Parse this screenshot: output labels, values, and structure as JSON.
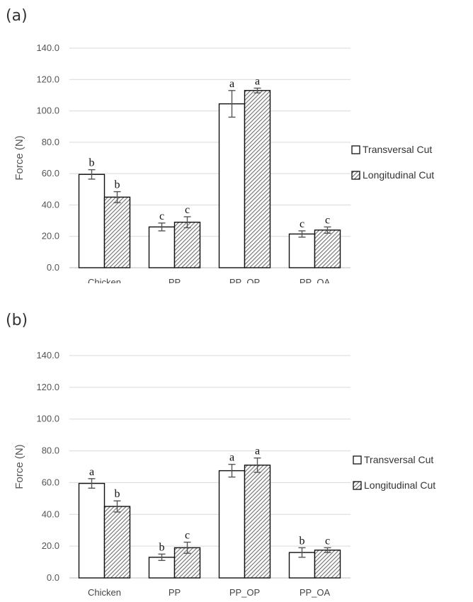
{
  "chart_data": [
    {
      "type": "bar",
      "panel_label": "(a)",
      "ylabel": "Force (N)",
      "ylim": [
        0,
        140
      ],
      "yticks": [
        "0.0",
        "20.0",
        "40.0",
        "60.0",
        "80.0",
        "100.0",
        "120.0",
        "140.0"
      ],
      "categories": [
        "Chicken",
        "PP",
        "PP_OP",
        "PP_OA"
      ],
      "legend_position": "right",
      "grid": true,
      "series": [
        {
          "name": "Transversal Cut",
          "pattern": "white",
          "values": [
            59.5,
            26.0,
            104.5,
            21.5
          ],
          "errors": [
            3.0,
            2.5,
            8.5,
            2.0
          ],
          "labels": [
            "b",
            "c",
            "a",
            "c"
          ]
        },
        {
          "name": "Longitudinal Cut",
          "pattern": "hatched",
          "values": [
            45.0,
            29.0,
            113.0,
            24.0
          ],
          "errors": [
            3.5,
            3.5,
            1.5,
            2.0
          ],
          "labels": [
            "b",
            "c",
            "a",
            "c"
          ]
        }
      ]
    },
    {
      "type": "bar",
      "panel_label": "(b)",
      "ylabel": "Force (N)",
      "ylim": [
        0,
        140
      ],
      "yticks": [
        "0.0",
        "20.0",
        "40.0",
        "60.0",
        "80.0",
        "100.0",
        "120.0",
        "140.0"
      ],
      "categories": [
        "Chicken",
        "PP",
        "PP_OP",
        "PP_OA"
      ],
      "legend_position": "right",
      "grid": true,
      "series": [
        {
          "name": "Transversal Cut",
          "pattern": "white",
          "values": [
            59.5,
            13.0,
            67.5,
            16.0
          ],
          "errors": [
            3.0,
            2.0,
            4.0,
            3.0
          ],
          "labels": [
            "a",
            "b",
            "a",
            "b"
          ]
        },
        {
          "name": "Longitudinal Cut",
          "pattern": "hatched",
          "values": [
            45.0,
            19.0,
            71.0,
            17.5
          ],
          "errors": [
            3.5,
            3.5,
            4.5,
            1.5
          ],
          "labels": [
            "b",
            "c",
            "a",
            "c"
          ]
        }
      ]
    }
  ]
}
